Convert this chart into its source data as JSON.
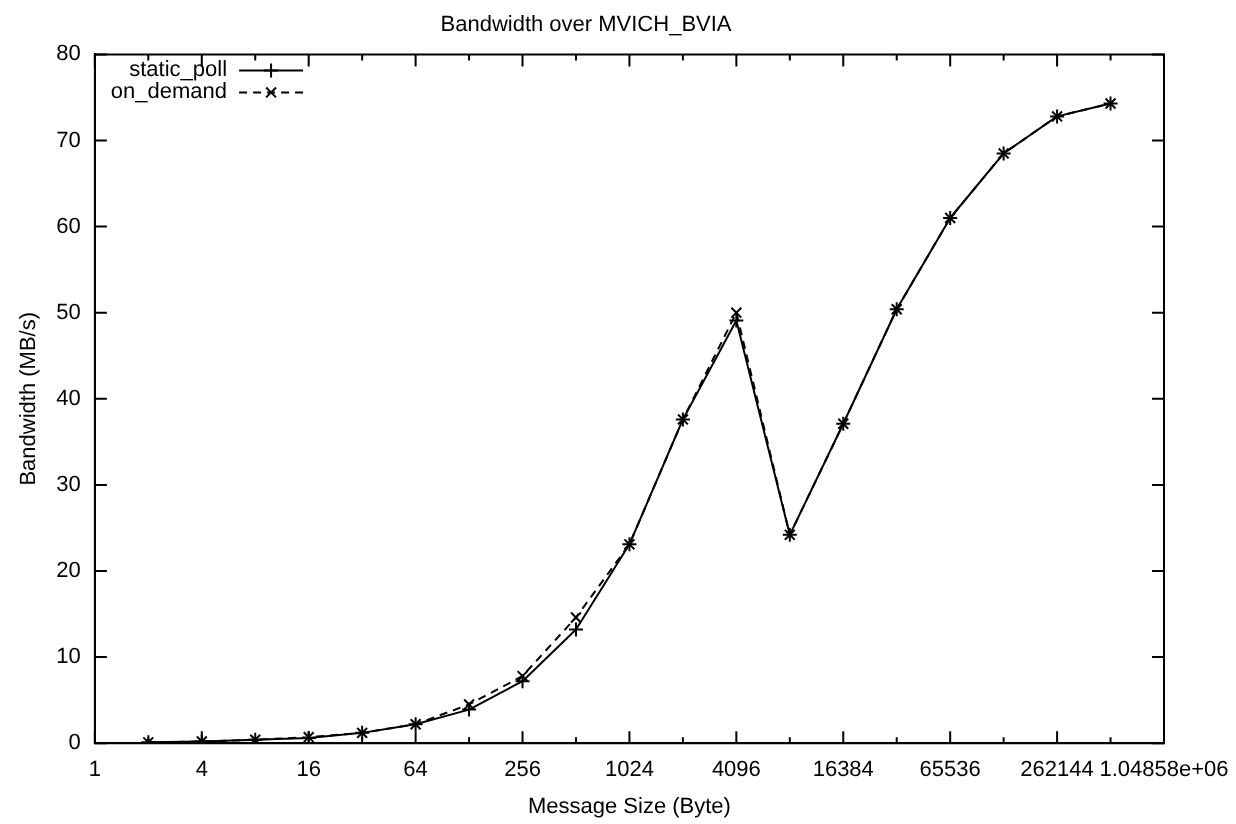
{
  "chart_data": {
    "type": "line",
    "title": "Bandwidth over MVICH_BVIA",
    "xlabel": "Message Size (Byte)",
    "ylabel": "Bandwidth (MB/s)",
    "x": [
      2,
      4,
      8,
      16,
      32,
      64,
      128,
      256,
      512,
      1024,
      2048,
      4096,
      8192,
      16384,
      32768,
      65536,
      131072,
      262144,
      524288
    ],
    "series": [
      {
        "name": "static_poll",
        "color": "#000000",
        "line_style": "solid",
        "values": [
          0.1,
          0.2,
          0.4,
          0.6,
          1.2,
          2.2,
          3.9,
          7.2,
          13.2,
          23.1,
          37.6,
          49.1,
          24.2,
          37.1,
          50.4,
          61.0,
          68.5,
          72.8,
          74.3
        ]
      },
      {
        "name": "on_demand",
        "color": "#000000",
        "line_style": "dashed",
        "values": [
          0.1,
          0.2,
          0.4,
          0.7,
          1.2,
          2.2,
          4.5,
          7.8,
          14.6,
          23.1,
          37.6,
          50.0,
          24.2,
          37.1,
          50.4,
          61.0,
          68.5,
          72.8,
          74.3
        ]
      }
    ],
    "log": "x",
    "xlim": [
      1,
      1048576
    ],
    "xticks": [
      1,
      {
        "value": 2,
        "label": null
      },
      4,
      {
        "value": 8,
        "label": null
      },
      16,
      {
        "value": 32,
        "label": null
      },
      64,
      {
        "value": 128,
        "label": null
      },
      256,
      {
        "value": 512,
        "label": null
      },
      1024,
      {
        "value": 2048,
        "label": null
      },
      4096,
      {
        "value": 8192,
        "label": null
      },
      16384,
      {
        "value": 32768,
        "label": null
      },
      65536,
      {
        "value": 131072,
        "label": null
      },
      262144,
      {
        "value": 524288,
        "label": null
      },
      {
        "value": 1048576,
        "label": "1.04858e+06"
      }
    ],
    "ylim": [
      0,
      80
    ],
    "yticks": [
      0,
      10,
      20,
      30,
      40,
      50,
      60,
      70,
      80
    ],
    "grid": false,
    "legend": "top left",
    "marker": "cross"
  }
}
